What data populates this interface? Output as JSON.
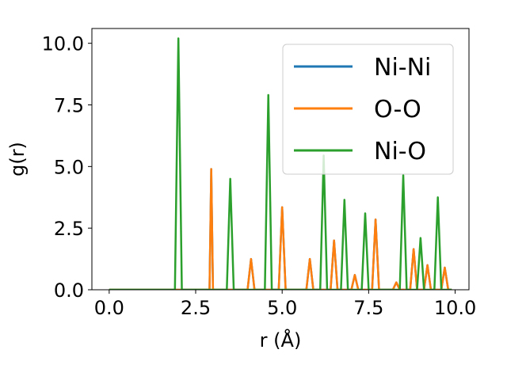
{
  "chart_data": {
    "type": "line",
    "title": "",
    "xlabel": "r (Å)",
    "ylabel": "g(r)",
    "xlim": [
      -0.5,
      10.4
    ],
    "ylim": [
      0,
      10.6
    ],
    "xticks": [
      "0.0",
      "2.5",
      "5.0",
      "7.5",
      "10.0"
    ],
    "yticks": [
      "0.0",
      "2.5",
      "5.0",
      "7.5",
      "10.0"
    ],
    "grid": false,
    "legend_position": "top-right",
    "series": [
      {
        "name": "Ni-Ni",
        "color": "#1f77b4",
        "x": [
          0.0,
          2.9,
          2.95,
          3.0,
          4.0,
          4.1,
          4.2,
          4.9,
          5.0,
          5.1,
          5.7,
          5.8,
          5.9,
          6.4,
          6.5,
          6.6,
          7.0,
          7.1,
          7.2,
          7.6,
          7.7,
          7.8,
          8.2,
          8.3,
          8.4,
          8.7,
          8.8,
          8.9,
          9.1,
          9.2,
          9.3,
          9.6,
          9.7,
          9.8,
          9.9
        ],
        "y": [
          0,
          0,
          4.9,
          0,
          0,
          1.25,
          0,
          0,
          3.35,
          0,
          0,
          1.25,
          0,
          0,
          2.0,
          0,
          0,
          0.6,
          0,
          0,
          2.85,
          0,
          0,
          0.3,
          0,
          0,
          1.65,
          0,
          0,
          1.0,
          0,
          0,
          0.9,
          0,
          0
        ]
      },
      {
        "name": "O-O",
        "color": "#ff7f0e",
        "x": [
          0.0,
          2.9,
          2.95,
          3.0,
          4.0,
          4.1,
          4.2,
          4.9,
          5.0,
          5.1,
          5.7,
          5.8,
          5.9,
          6.4,
          6.5,
          6.6,
          7.0,
          7.1,
          7.2,
          7.6,
          7.7,
          7.8,
          8.2,
          8.3,
          8.4,
          8.7,
          8.8,
          8.9,
          9.1,
          9.2,
          9.3,
          9.6,
          9.7,
          9.8,
          9.9
        ],
        "y": [
          0,
          0,
          4.9,
          0,
          0,
          1.25,
          0,
          0,
          3.35,
          0,
          0,
          1.25,
          0,
          0,
          2.0,
          0,
          0,
          0.6,
          0,
          0,
          2.85,
          0,
          0,
          0.3,
          0,
          0,
          1.65,
          0,
          0,
          1.0,
          0,
          0,
          0.9,
          0,
          0
        ]
      },
      {
        "name": "Ni-O",
        "color": "#2ca02c",
        "x": [
          0.0,
          1.9,
          2.0,
          2.1,
          3.4,
          3.5,
          3.6,
          4.5,
          4.6,
          4.7,
          6.1,
          6.2,
          6.3,
          6.7,
          6.8,
          6.9,
          7.3,
          7.4,
          7.5,
          8.4,
          8.5,
          8.6,
          8.9,
          9.0,
          9.1,
          9.4,
          9.5,
          9.6,
          9.9
        ],
        "y": [
          0,
          0,
          10.2,
          0,
          0,
          4.5,
          0,
          0,
          7.9,
          0,
          0,
          5.45,
          0,
          0,
          3.65,
          0,
          0,
          3.1,
          0,
          0,
          4.65,
          0,
          0,
          2.1,
          0,
          0,
          3.75,
          0,
          0
        ]
      }
    ]
  }
}
